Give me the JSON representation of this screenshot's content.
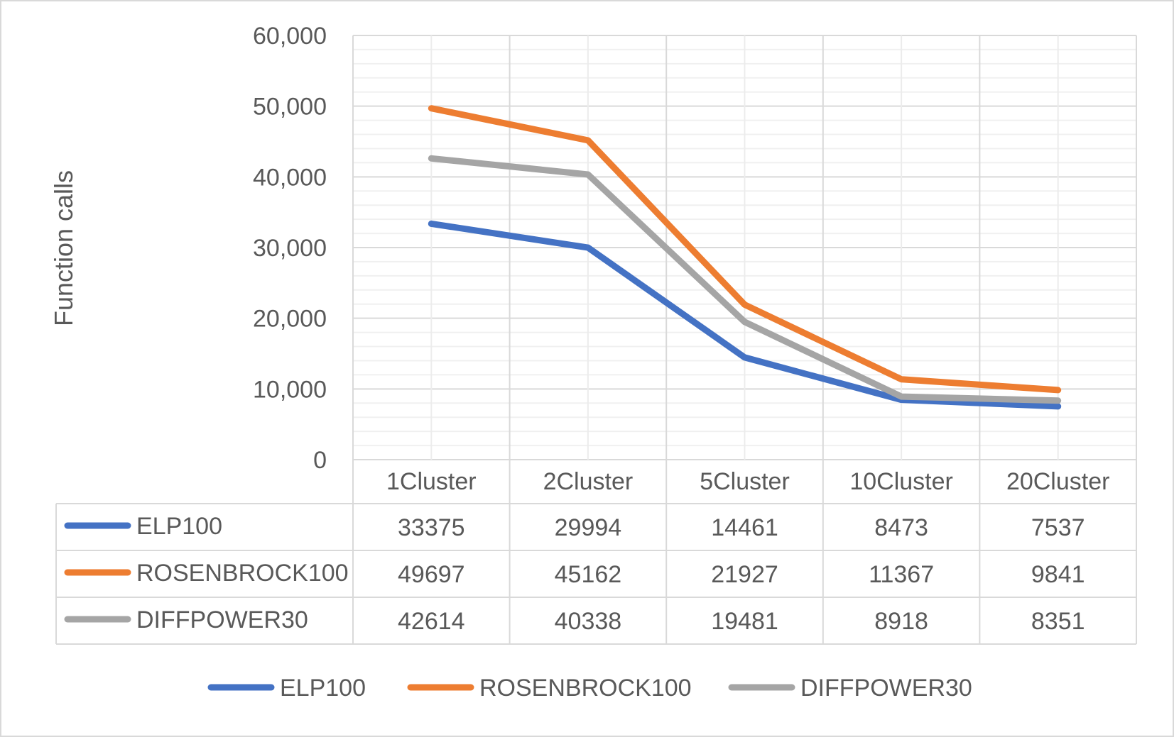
{
  "chart_data": {
    "type": "line",
    "ylabel": "Function calls",
    "xlabel": "",
    "title": "",
    "categories": [
      "1Cluster",
      "2Cluster",
      "5Cluster",
      "10Cluster",
      "20Cluster"
    ],
    "ylim": [
      0,
      60000
    ],
    "y_major_ticks": [
      0,
      10000,
      20000,
      30000,
      40000,
      50000,
      60000
    ],
    "y_tick_labels": [
      "0",
      "10,000",
      "20,000",
      "30,000",
      "40,000",
      "50,000",
      "60,000"
    ],
    "y_minor_step": 2000,
    "grid": true,
    "data_table": true,
    "legend_position": "bottom",
    "series": [
      {
        "name": "ELP100",
        "color": "#4472C4",
        "values": [
          33375,
          29994,
          14461,
          8473,
          7537
        ]
      },
      {
        "name": "ROSENBROCK100",
        "color": "#ED7D31",
        "values": [
          49697,
          45162,
          21927,
          11367,
          9841
        ]
      },
      {
        "name": "DIFFPOWER30",
        "color": "#A5A5A5",
        "values": [
          42614,
          40338,
          19481,
          8918,
          8351
        ]
      }
    ]
  }
}
